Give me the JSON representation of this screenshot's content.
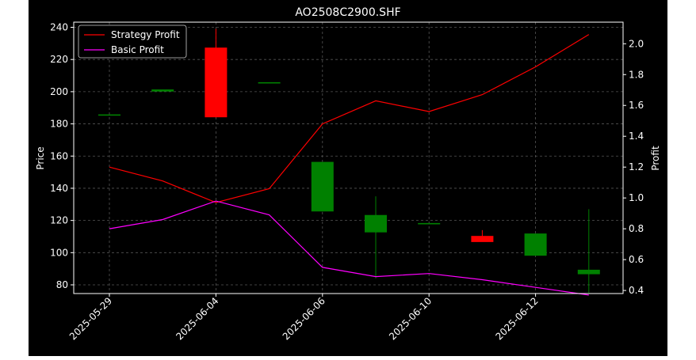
{
  "colors": {
    "page_background": "#ffffff",
    "figure_background": "#000000",
    "axes_frame": "#ffffff",
    "grid": "#555555",
    "up_candle": "#008000",
    "down_candle": "#ff0000",
    "strategy_line": "#ff0000",
    "basic_line": "#ff00ff",
    "text": "#ffffff"
  },
  "chart_data": {
    "type": "candlestick_with_lines",
    "title": "AO2508C2900.SHF",
    "ylabel_left": "Price",
    "ylabel_right": "Profit",
    "grid": true,
    "legend_placement": "top-left",
    "y_left": {
      "min": 74.6,
      "max": 243.2,
      "ticks": [
        80,
        100,
        120,
        140,
        160,
        180,
        200,
        220,
        240
      ]
    },
    "y_right": {
      "min": 0.38,
      "max": 2.14,
      "ticks": [
        0.4,
        0.6,
        0.8,
        1.0,
        1.2,
        1.4,
        1.6,
        1.8,
        2.0
      ],
      "tick_labels": [
        "0.4",
        "0.6",
        "0.8",
        "1.0",
        "1.2",
        "1.4",
        "1.6",
        "1.8",
        "2.0"
      ]
    },
    "x_labels": [
      "2025-05-29",
      "2025-06-04",
      "2025-06-06",
      "2025-06-10",
      "2025-06-12"
    ],
    "x_label_indices": [
      0,
      2,
      4,
      6,
      8
    ],
    "candles": [
      {
        "i": 0,
        "open": 185.5,
        "close": 185.5,
        "high": 185.5,
        "low": 185.5
      },
      {
        "i": 1,
        "open": 200.5,
        "close": 201.0,
        "high": 201.0,
        "low": 200.5
      },
      {
        "i": 2,
        "open": 227.0,
        "close": 184.5,
        "high": 239.0,
        "low": 184.0
      },
      {
        "i": 3,
        "open": 205.5,
        "close": 205.5,
        "high": 205.5,
        "low": 205.5
      },
      {
        "i": 4,
        "open": 126.0,
        "close": 156.0,
        "high": 156.0,
        "low": 125.5
      },
      {
        "i": 5,
        "open": 113.0,
        "close": 123.0,
        "high": 135.0,
        "low": 84.0
      },
      {
        "i": 6,
        "open": 118.0,
        "close": 118.0,
        "high": 118.0,
        "low": 118.0
      },
      {
        "i": 7,
        "open": 110.0,
        "close": 107.0,
        "high": 114.0,
        "low": 107.0
      },
      {
        "i": 8,
        "open": 98.5,
        "close": 111.5,
        "high": 111.5,
        "low": 98.0
      },
      {
        "i": 9,
        "open": 87.0,
        "close": 89.0,
        "high": 127.0,
        "low": 75.0
      }
    ],
    "series": [
      {
        "name": "Strategy Profit",
        "values": [
          1.2,
          1.11,
          0.97,
          1.06,
          1.48,
          1.63,
          1.56,
          1.67,
          1.85,
          2.06
        ]
      },
      {
        "name": "Basic Profit",
        "values": [
          0.8,
          0.86,
          0.98,
          0.89,
          0.55,
          0.49,
          0.51,
          0.47,
          0.42,
          0.37
        ]
      }
    ]
  }
}
